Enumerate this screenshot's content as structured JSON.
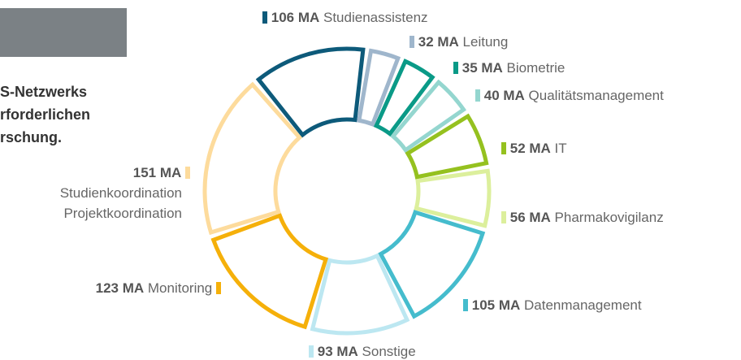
{
  "intro": {
    "lines": [
      "S-Netzwerks",
      "rforderlichen",
      "rschung."
    ]
  },
  "chart_data": {
    "type": "donut",
    "categories": [
      "Studienassistenz",
      "Leitung",
      "Biometrie",
      "Qualitätsmanagement",
      "IT",
      "Pharmakovigilanz",
      "Datenmanagement",
      "Sonstige",
      "Monitoring",
      "Studienkoordination\nProjektkoordination"
    ],
    "values": [
      106,
      32,
      35,
      40,
      52,
      56,
      105,
      93,
      123,
      151
    ],
    "value_labels": [
      "106 MA",
      "32 MA",
      "35 MA",
      "40 MA",
      "52 MA",
      "56 MA",
      "105 MA",
      "93 MA",
      "123 MA",
      "151 MA"
    ],
    "colors": [
      "#0d5a7a",
      "#9fb6cc",
      "#0a9a87",
      "#94d6cf",
      "#95c11f",
      "#dcef9c",
      "#45bccd",
      "#bce7f1",
      "#f5b00a",
      "#fddb9c"
    ]
  }
}
